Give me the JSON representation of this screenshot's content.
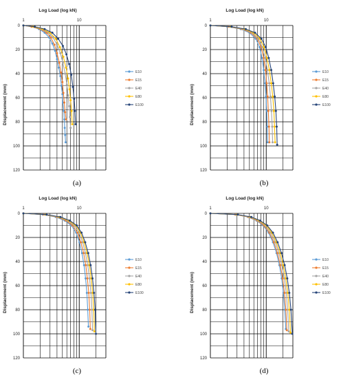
{
  "chart_data": [
    {
      "type": "line",
      "caption": "(a)",
      "title": "Log Load (log kN)",
      "xlabel": "Log Load (log kN)",
      "ylabel": "Displacement (mm)",
      "x_scale": "log",
      "x_ticks": [
        "1",
        "10"
      ],
      "y_ticks": [
        "0",
        "20",
        "40",
        "60",
        "80",
        "100",
        "120"
      ],
      "ylim": [
        0,
        120
      ],
      "y_inverted": true,
      "grid": true,
      "legend_position": "right",
      "series": [
        {
          "name": "E10",
          "color": "#5b9bd5",
          "x": [
            1,
            1.4,
            1.9,
            2.4,
            2.9,
            3.3,
            3.7,
            4.0,
            4.3,
            4.6,
            4.8,
            5.0,
            5.1,
            5.3,
            5.4,
            5.5,
            5.6,
            5.7
          ],
          "y": [
            0,
            1,
            3,
            6,
            10,
            15,
            21,
            28,
            35,
            42,
            50,
            57,
            64,
            71,
            78,
            85,
            91,
            97
          ]
        },
        {
          "name": "E15",
          "color": "#ed7d31",
          "x": [
            1,
            1.4,
            2.0,
            2.6,
            3.1,
            3.6,
            4.0,
            4.4,
            4.7,
            5.0,
            5.2,
            5.4,
            5.6,
            5.8
          ],
          "y": [
            0,
            1,
            3,
            6,
            10,
            16,
            23,
            31,
            39,
            47,
            56,
            64,
            72,
            78
          ]
        },
        {
          "name": "E40",
          "color": "#a5a5a5",
          "x": [
            1,
            1.5,
            2.1,
            2.8,
            3.4,
            4.0,
            4.6,
            5.1,
            5.6,
            6.0,
            6.3,
            6.6,
            6.8,
            7.0
          ],
          "y": [
            0,
            1,
            3,
            6,
            10,
            16,
            23,
            31,
            40,
            49,
            58,
            67,
            76,
            85
          ]
        },
        {
          "name": "E80",
          "color": "#ffc000",
          "x": [
            1,
            1.5,
            2.2,
            3.0,
            3.8,
            4.5,
            5.2,
            5.8,
            6.3,
            6.7,
            7.0,
            7.3,
            7.5
          ],
          "y": [
            0,
            1,
            3,
            6,
            11,
            18,
            26,
            35,
            44,
            53,
            62,
            71,
            82
          ]
        },
        {
          "name": "E100",
          "color": "#264478",
          "x": [
            1,
            1.6,
            2.4,
            3.3,
            4.2,
            5.1,
            5.9,
            6.6,
            7.2,
            7.7,
            8.1,
            8.4,
            8.6
          ],
          "y": [
            0,
            1,
            3,
            6,
            11,
            17,
            24,
            32,
            41,
            51,
            61,
            71,
            82
          ]
        }
      ]
    },
    {
      "type": "line",
      "caption": "(b)",
      "title": "Log Load (log kN)",
      "xlabel": "Log Load (log kN)",
      "ylabel": "Displacement (mm)",
      "x_scale": "log",
      "x_ticks": [
        "1",
        "10"
      ],
      "y_ticks": [
        "0",
        "20",
        "40",
        "60",
        "80",
        "100",
        "120"
      ],
      "ylim": [
        0,
        120
      ],
      "y_inverted": true,
      "grid": true,
      "legend_position": "right",
      "series": [
        {
          "name": "E10",
          "color": "#5b9bd5",
          "x": [
            1,
            2.0,
            3.5,
            5.0,
            6.5,
            7.6,
            8.4,
            9.0,
            9.5,
            9.9,
            10.2,
            10.4,
            10.6
          ],
          "y": [
            0,
            1,
            3,
            6,
            11,
            18,
            27,
            37,
            48,
            59,
            71,
            84,
            97
          ]
        },
        {
          "name": "E15",
          "color": "#ed7d31",
          "x": [
            1,
            2.1,
            3.7,
            5.3,
            6.9,
            8.1,
            9.0,
            9.7,
            10.2,
            10.6,
            10.9,
            11.2,
            11.4
          ],
          "y": [
            0,
            1,
            3,
            6,
            11,
            18,
            27,
            37,
            48,
            59,
            71,
            84,
            97
          ]
        },
        {
          "name": "E40",
          "color": "#a5a5a5",
          "x": [
            1,
            2.2,
            3.9,
            5.6,
            7.2,
            8.5,
            9.6,
            10.5,
            11.3,
            11.9,
            12.4,
            12.8,
            13.0
          ],
          "y": [
            0,
            1,
            3,
            6,
            11,
            18,
            27,
            37,
            48,
            59,
            71,
            84,
            97
          ]
        },
        {
          "name": "E80",
          "color": "#ffc000",
          "x": [
            1,
            2.3,
            4.1,
            5.9,
            7.7,
            9.1,
            10.3,
            11.4,
            12.3,
            13.1,
            13.7,
            14.1,
            14.4
          ],
          "y": [
            0,
            1,
            3,
            6,
            11,
            18,
            27,
            37,
            48,
            59,
            71,
            84,
            97
          ]
        },
        {
          "name": "E100",
          "color": "#264478",
          "x": [
            1,
            2.4,
            4.3,
            6.3,
            8.2,
            9.8,
            11.1,
            12.3,
            13.3,
            14.2,
            14.9,
            15.4,
            15.7
          ],
          "y": [
            0,
            1,
            3,
            6,
            11,
            18,
            27,
            37,
            48,
            59,
            71,
            84,
            99
          ]
        }
      ]
    },
    {
      "type": "line",
      "caption": "(c)",
      "title": "Log Load (log kN)",
      "xlabel": "Log Load (log kN)",
      "ylabel": "Displacement (mm)",
      "x_scale": "log",
      "x_ticks": [
        "1",
        "10"
      ],
      "y_ticks": [
        "0",
        "20",
        "40",
        "60",
        "80",
        "100",
        "120"
      ],
      "ylim": [
        0,
        120
      ],
      "y_inverted": true,
      "grid": true,
      "legend_position": "right",
      "series": [
        {
          "name": "E10",
          "color": "#5b9bd5",
          "x": [
            1,
            2.2,
            3.8,
            5.5,
            7.2,
            8.8,
            10.1,
            11.2,
            12.2,
            13.0,
            13.7,
            14.2,
            14.6
          ],
          "y": [
            0,
            1,
            3,
            6,
            10,
            16,
            24,
            33,
            43,
            54,
            66,
            80,
            94
          ]
        },
        {
          "name": "E15",
          "color": "#ed7d31",
          "x": [
            1,
            2.3,
            4.0,
            5.8,
            7.6,
            9.3,
            10.7,
            12.0,
            13.1,
            14.0,
            14.8,
            15.4,
            15.8
          ],
          "y": [
            0,
            1,
            3,
            6,
            10,
            16,
            24,
            33,
            43,
            54,
            66,
            80,
            96
          ]
        },
        {
          "name": "E40",
          "color": "#a5a5a5",
          "x": [
            1,
            2.4,
            4.2,
            6.2,
            8.1,
            9.9,
            11.5,
            12.9,
            14.2,
            15.3,
            16.2,
            16.9,
            17.3
          ],
          "y": [
            0,
            1,
            3,
            6,
            10,
            16,
            24,
            33,
            43,
            54,
            66,
            80,
            97
          ]
        },
        {
          "name": "E80",
          "color": "#ffc000",
          "x": [
            1,
            2.5,
            4.4,
            6.5,
            8.6,
            10.5,
            12.2,
            13.8,
            15.2,
            16.4,
            17.4,
            18.2,
            18.7
          ],
          "y": [
            0,
            1,
            3,
            6,
            10,
            16,
            24,
            33,
            43,
            54,
            66,
            80,
            98
          ]
        },
        {
          "name": "E100",
          "color": "#264478",
          "x": [
            1,
            2.6,
            4.6,
            6.8,
            9.0,
            11.0,
            12.8,
            14.5,
            16.0,
            17.3,
            18.4,
            19.3,
            19.9
          ],
          "y": [
            0,
            1,
            3,
            6,
            10,
            16,
            24,
            33,
            43,
            54,
            66,
            80,
            100
          ]
        }
      ]
    },
    {
      "type": "line",
      "caption": "(d)",
      "title": "Log Load (log kN)",
      "xlabel": "Log Load (log kN)",
      "ylabel": "Displacement (mm)",
      "x_scale": "log",
      "x_ticks": [
        "1",
        "10"
      ],
      "y_ticks": [
        "0",
        "20",
        "40",
        "60",
        "80",
        "100",
        "120"
      ],
      "ylim": [
        0,
        120
      ],
      "y_inverted": true,
      "grid": true,
      "legend_position": "right",
      "series": [
        {
          "name": "E10",
          "color": "#5b9bd5",
          "x": [
            1,
            2.8,
            4.7,
            6.7,
            8.8,
            11.0,
            13.2,
            15.3,
            17.2,
            18.9,
            20.3,
            21.5,
            22.4
          ],
          "y": [
            0,
            1,
            3,
            6,
            10,
            16,
            24,
            33,
            43,
            54,
            66,
            80,
            96
          ]
        },
        {
          "name": "E15",
          "color": "#ed7d31",
          "x": [
            1,
            2.8,
            4.8,
            6.9,
            9.1,
            11.4,
            13.7,
            15.9,
            17.9,
            19.7,
            21.2,
            22.5,
            23.4
          ],
          "y": [
            0,
            1,
            3,
            6,
            10,
            16,
            24,
            33,
            43,
            54,
            66,
            80,
            97
          ]
        },
        {
          "name": "E40",
          "color": "#a5a5a5",
          "x": [
            1,
            2.9,
            5.0,
            7.2,
            9.6,
            12.0,
            14.5,
            16.9,
            19.1,
            21.1,
            22.8,
            24.2,
            25.3
          ],
          "y": [
            0,
            1,
            3,
            6,
            10,
            16,
            24,
            33,
            43,
            54,
            66,
            80,
            98
          ]
        },
        {
          "name": "E80",
          "color": "#ffc000",
          "x": [
            1,
            3.0,
            5.2,
            7.5,
            10.0,
            12.6,
            15.2,
            17.8,
            20.2,
            22.4,
            24.3,
            25.9,
            27.2
          ],
          "y": [
            0,
            1,
            3,
            6,
            10,
            16,
            24,
            33,
            43,
            54,
            66,
            80,
            99
          ]
        },
        {
          "name": "E100",
          "color": "#264478",
          "x": [
            1,
            3.1,
            5.4,
            7.8,
            10.4,
            13.2,
            16.0,
            18.8,
            21.4,
            23.8,
            25.9,
            27.7,
            29.3
          ],
          "y": [
            0,
            1,
            3,
            6,
            10,
            16,
            24,
            33,
            43,
            54,
            66,
            80,
            100
          ]
        }
      ]
    }
  ]
}
